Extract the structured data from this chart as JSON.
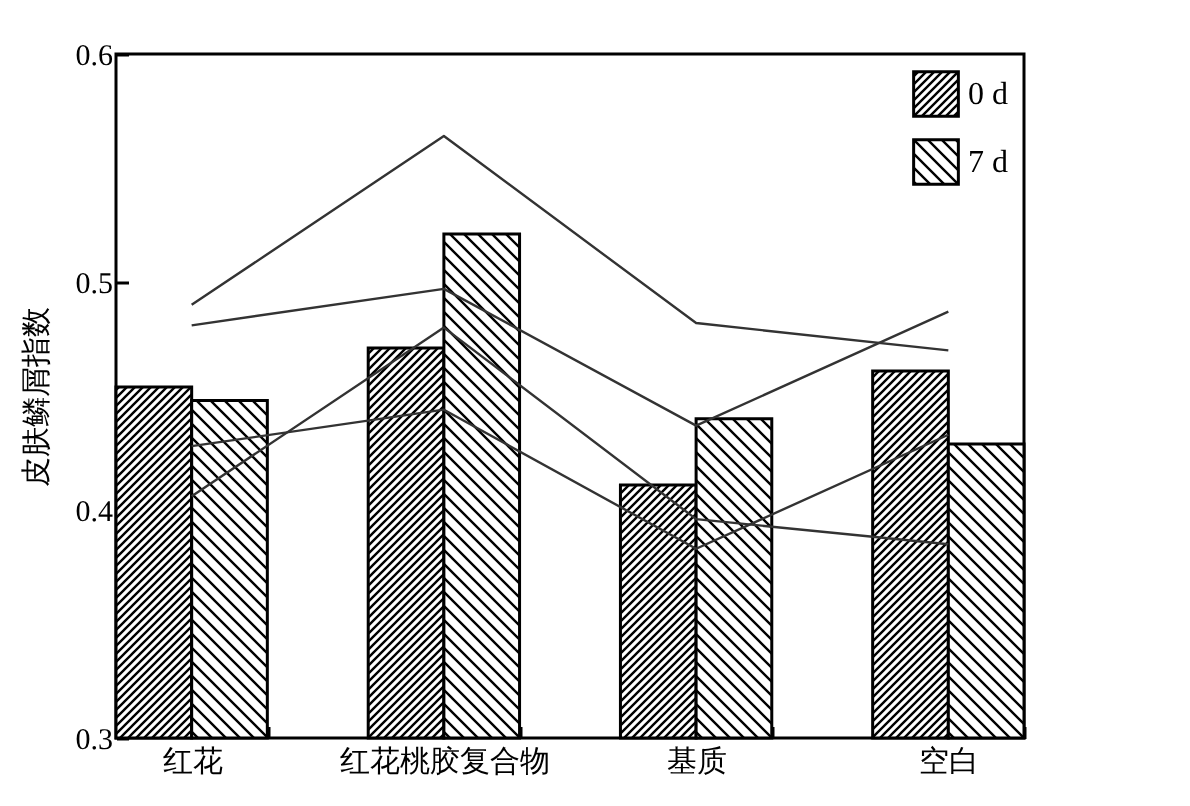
{
  "chart_data": {
    "type": "bar",
    "ylabel": "皮肤鳞屑指数",
    "categories": [
      "红花",
      "红花桃胶复合物",
      "基质",
      "空白"
    ],
    "series": [
      {
        "name": "0 d",
        "color": "#000000",
        "values": [
          0.454,
          0.471,
          0.411,
          0.461
        ]
      },
      {
        "name": "7 d",
        "color": "#000000",
        "values": [
          0.448,
          0.521,
          0.44,
          0.429
        ]
      },
      {
        "type": "line",
        "color": "#333333",
        "values": [
          0.49,
          0.564,
          0.482,
          0.47
        ]
      },
      {
        "type": "line",
        "color": "#333333",
        "values": [
          0.481,
          0.497,
          0.437,
          0.487
        ]
      },
      {
        "type": "line",
        "color": "#333333",
        "values": [
          0.406,
          0.48,
          0.396,
          0.385
        ]
      },
      {
        "type": "line",
        "color": "#333333",
        "values": [
          0.428,
          0.444,
          0.383,
          0.433
        ]
      }
    ],
    "ylim": [
      0.3,
      0.6
    ],
    "yticks": [
      0.3,
      0.4,
      0.5,
      0.6
    ],
    "grid": false,
    "legend": "top right"
  }
}
